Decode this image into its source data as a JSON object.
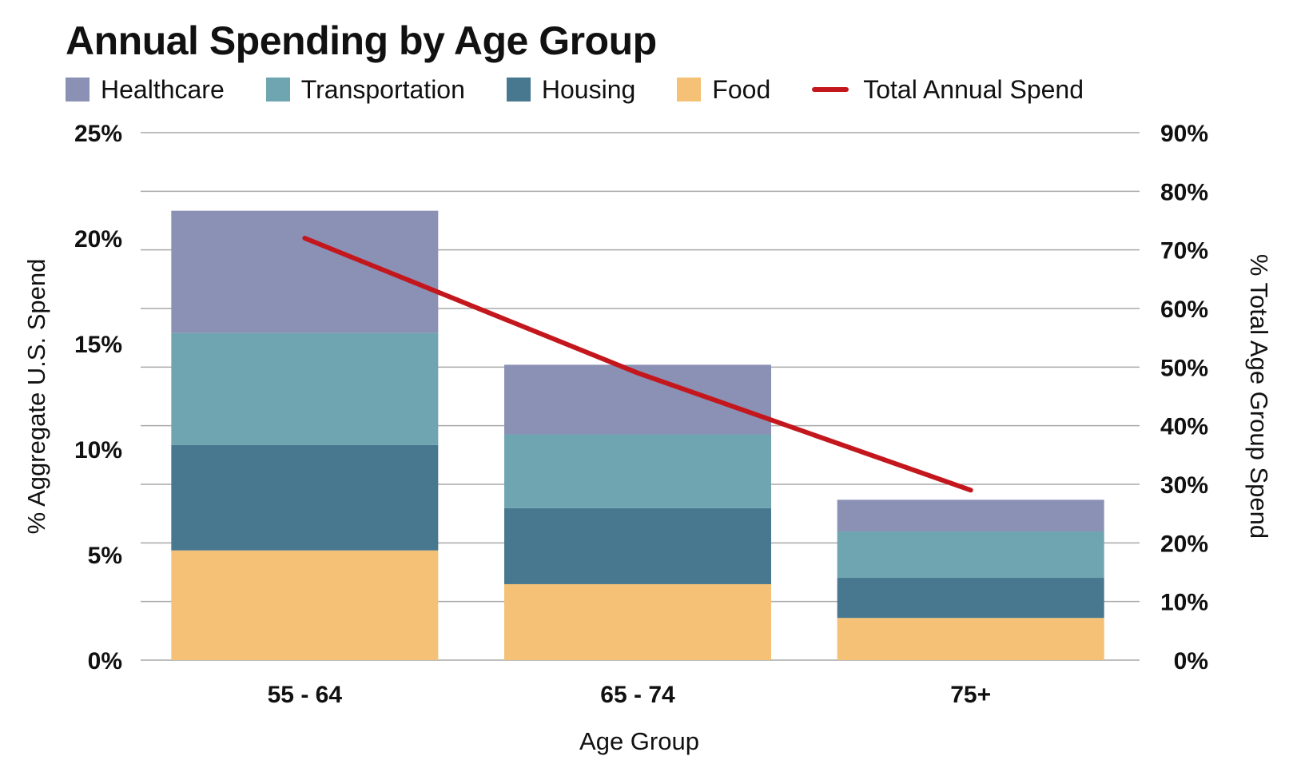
{
  "chart_data": {
    "type": "bar",
    "stacked": true,
    "title": "Annual Spending by Age Group",
    "categories": [
      "55 - 64",
      "65 - 74",
      "75+"
    ],
    "series": [
      {
        "name": "Food",
        "color": "#f4c176",
        "values": [
          5.2,
          3.6,
          2.0
        ]
      },
      {
        "name": "Housing",
        "color": "#47788f",
        "values": [
          5.0,
          3.6,
          1.9
        ]
      },
      {
        "name": "Transportation",
        "color": "#6fa5b0",
        "values": [
          5.3,
          3.5,
          2.2
        ]
      },
      {
        "name": "Healthcare",
        "color": "#8a91b5",
        "values": [
          5.8,
          3.3,
          1.5
        ]
      }
    ],
    "line": {
      "name": "Total Annual Spend",
      "color": "#c4171d",
      "values": [
        72,
        49,
        29
      ]
    },
    "xlabel": "Age Group",
    "ylabel_left": "% Aggregate U.S. Spend",
    "ylabel_right": "% Total Age Group Spend",
    "ylim_left": [
      0,
      25
    ],
    "ylim_right": [
      0,
      90
    ],
    "yticks_left": [
      "0%",
      "5%",
      "10%",
      "15%",
      "20%",
      "25%"
    ],
    "yticks_right": [
      "0%",
      "10%",
      "20%",
      "30%",
      "40%",
      "50%",
      "60%",
      "70%",
      "80%",
      "90%"
    ],
    "legend": [
      "Healthcare",
      "Transportation",
      "Housing",
      "Food",
      "Total Annual Spend"
    ],
    "grid": true
  }
}
